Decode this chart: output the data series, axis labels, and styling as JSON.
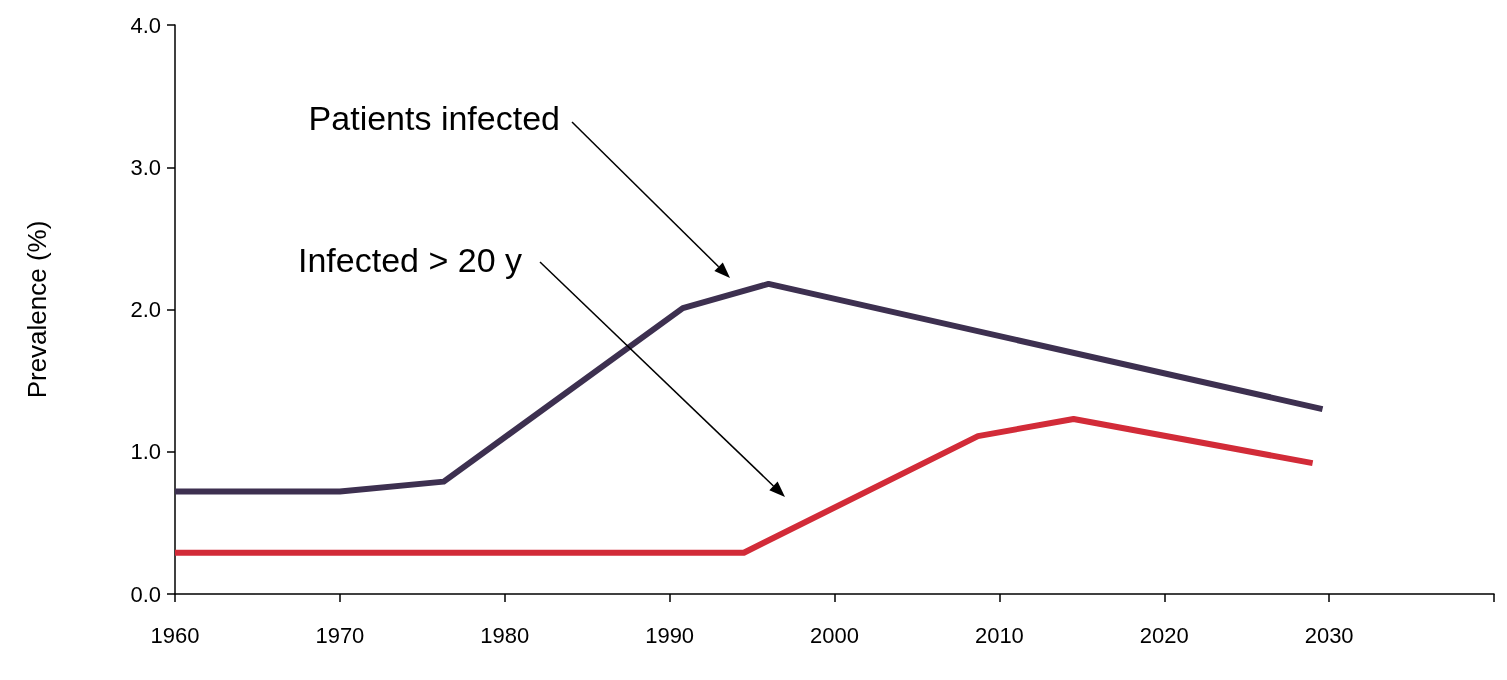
{
  "chart_data": {
    "type": "line",
    "ylabel": "Prevalence (%)",
    "xlim": [
      1960,
      2040
    ],
    "xticks": [
      1960,
      1970,
      1980,
      1990,
      2000,
      2010,
      2020,
      2030,
      {
        "value": 2040,
        "label": null
      }
    ],
    "ylim": [
      0,
      4
    ],
    "yticks": [
      {
        "value": 0,
        "label": "0.0"
      },
      {
        "value": 1,
        "label": "1.0"
      },
      {
        "value": 2,
        "label": "2.0"
      },
      {
        "value": 3,
        "label": "3.0"
      },
      {
        "value": 4,
        "label": "4.0"
      }
    ],
    "series": [
      {
        "color": "#3d3050",
        "x": [
          1960,
          1970,
          1976.3,
          1990.8,
          1996,
          2029.6
        ],
        "values": [
          0.72,
          0.72,
          0.79,
          2.01,
          2.18,
          1.3
        ]
      },
      {
        "color": "#d22b38",
        "x": [
          1960,
          1994.5,
          2008.7,
          2014.5,
          2029
        ],
        "values": [
          0.29,
          0.29,
          1.11,
          1.23,
          0.92
        ]
      }
    ],
    "annotations": [
      "Patients infected",
      "Infected > 20 y"
    ],
    "grid": false,
    "marker": "none",
    "line_style": "solid"
  }
}
